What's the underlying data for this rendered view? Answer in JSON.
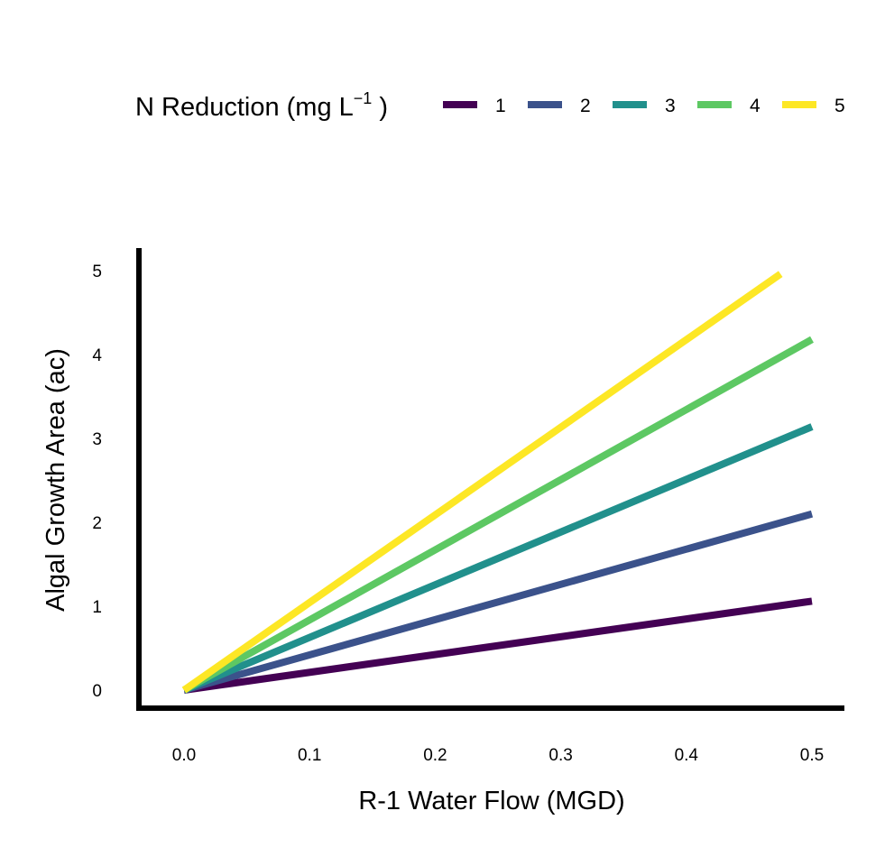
{
  "chart_data": {
    "type": "line",
    "xlabel": "R-1 Water Flow (MGD)",
    "ylabel": "Algal Growth Area (ac)",
    "xlim": [
      0,
      0.5
    ],
    "ylim": [
      0,
      5
    ],
    "x_ticks": [
      "0.0",
      "0.1",
      "0.2",
      "0.3",
      "0.4",
      "0.5"
    ],
    "y_ticks": [
      "0",
      "1",
      "2",
      "3",
      "4",
      "5"
    ],
    "legend": {
      "title_main": "N Reduction (mg L",
      "title_sup": "−1",
      "title_end": " )",
      "position": "top"
    },
    "series": [
      {
        "name": "1",
        "color": "#440154",
        "points": [
          [
            0,
            0
          ],
          [
            0.5,
            1.06
          ]
        ]
      },
      {
        "name": "2",
        "color": "#3B528B",
        "points": [
          [
            0,
            0
          ],
          [
            0.5,
            2.1
          ]
        ]
      },
      {
        "name": "3",
        "color": "#21908C",
        "points": [
          [
            0,
            0
          ],
          [
            0.5,
            3.14
          ]
        ]
      },
      {
        "name": "4",
        "color": "#5DC863",
        "points": [
          [
            0,
            0
          ],
          [
            0.5,
            4.18
          ]
        ]
      },
      {
        "name": "5",
        "color": "#FDE725",
        "points": [
          [
            0,
            0
          ],
          [
            0.475,
            4.96
          ]
        ]
      }
    ]
  }
}
